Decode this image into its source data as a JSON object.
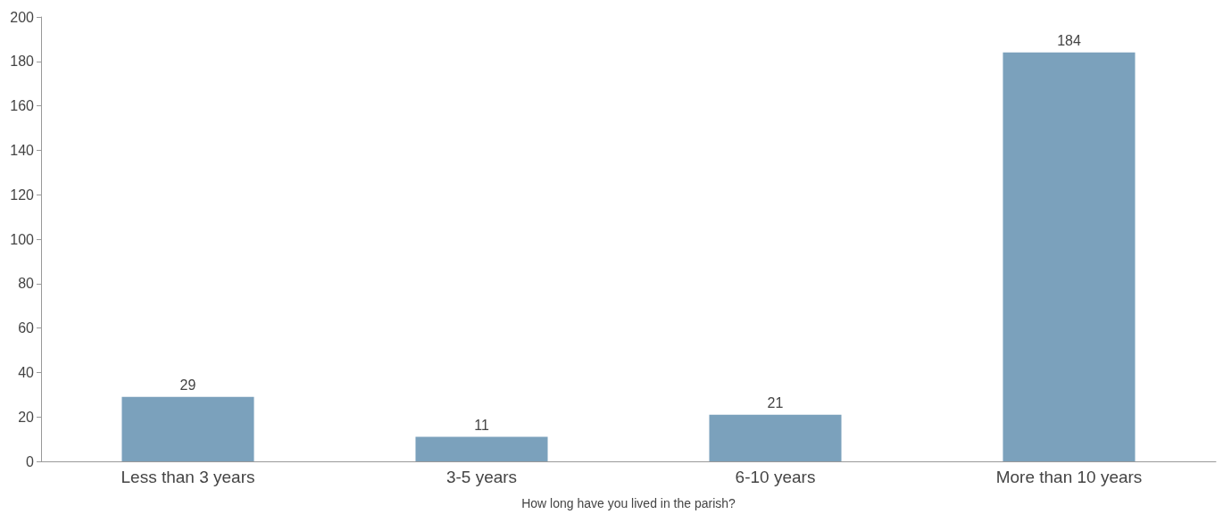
{
  "chart_data": {
    "type": "bar",
    "xlabel": "How long have you lived in the parish?",
    "categories": [
      "Less than 3 years",
      "3-5 years",
      "6-10 years",
      "More than 10 years"
    ],
    "values": [
      29,
      11,
      21,
      184
    ],
    "color": "#7ba1bc",
    "ylim": [
      0,
      200
    ],
    "yticks": [
      0,
      20,
      40,
      60,
      80,
      100,
      120,
      140,
      160,
      180,
      200
    ],
    "grid": false,
    "data_labels": true
  }
}
